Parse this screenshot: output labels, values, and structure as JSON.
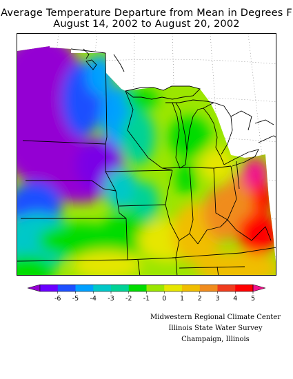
{
  "title": {
    "line1": "Average Temperature Departure from Mean in Degrees F",
    "line2": "August 14, 2002 to August 20, 2002"
  },
  "map": {
    "variable": "Average Temperature Departure from Mean",
    "units": "Degrees F",
    "period_start": "August 14, 2002",
    "period_end": "August 20, 2002"
  },
  "legend": {
    "ticks": [
      "-6",
      "-5",
      "-4",
      "-3",
      "-2",
      "-1",
      "0",
      "1",
      "2",
      "3",
      "4",
      "5"
    ],
    "colors": [
      "#9400d3",
      "#6a00ff",
      "#1e50ff",
      "#00a0ff",
      "#00c8c8",
      "#00d296",
      "#00dc00",
      "#9be600",
      "#e6e600",
      "#f0be00",
      "#f08c1e",
      "#f03c1e",
      "#ff0000",
      "#f0148c"
    ]
  },
  "credits": {
    "line1": "Midwestern Regional Climate Center",
    "line2": "Illinois State Water Survey",
    "line3": "Champaign, Illinois"
  }
}
